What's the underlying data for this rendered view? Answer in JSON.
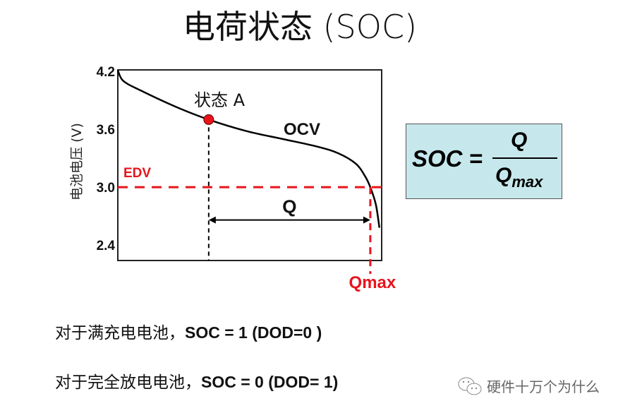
{
  "title": "电荷状态 (SOC)",
  "chart_data": {
    "type": "line",
    "ylabel": "电池电压 (V)",
    "xlabel": "",
    "yticks": [
      "4.2",
      "3.6",
      "3.0",
      "2.4"
    ],
    "ytick_values": [
      4.2,
      3.6,
      3.0,
      2.4
    ],
    "ylim": [
      2.24,
      4.215
    ],
    "xlim": [
      0,
      1.045
    ],
    "grid": false,
    "series": [
      {
        "name": "OCV",
        "color": "#000000",
        "x": [
          0,
          0.022,
          0.092,
          0.232,
          0.36,
          0.511,
          0.651,
          0.79,
          0.874,
          0.944,
          0.98,
          1.0,
          1.022,
          1.036
        ],
        "y": [
          4.21,
          4.1,
          4.0,
          3.83,
          3.7,
          3.58,
          3.5,
          3.42,
          3.35,
          3.24,
          3.11,
          3.0,
          2.82,
          2.58
        ]
      }
    ],
    "edv": {
      "label": "EDV",
      "value": 3.0,
      "color": "#e8141c"
    },
    "state_a": {
      "label": "状态 A",
      "x": 0.36,
      "y": 3.7,
      "color": "#e8141c"
    },
    "qmax": {
      "label": "Qmax",
      "x": 1.0,
      "color": "#e8141c"
    },
    "q_arrow": {
      "label": "Q",
      "from": 0.36,
      "to": 1.0,
      "y": 2.66
    }
  },
  "formula": {
    "lhs": "SOC =",
    "num": "Q",
    "den": "Q",
    "den_sub": "max"
  },
  "lines": [
    {
      "cn": "对于满充电电池，",
      "en": "SOC = 1 (DOD=0 )"
    },
    {
      "cn": "对于完全放电电池，",
      "en": "SOC = 0 (DOD= 1)"
    }
  ],
  "watermark": {
    "icon": "wechat-icon",
    "text": "硬件十万个为什么"
  }
}
